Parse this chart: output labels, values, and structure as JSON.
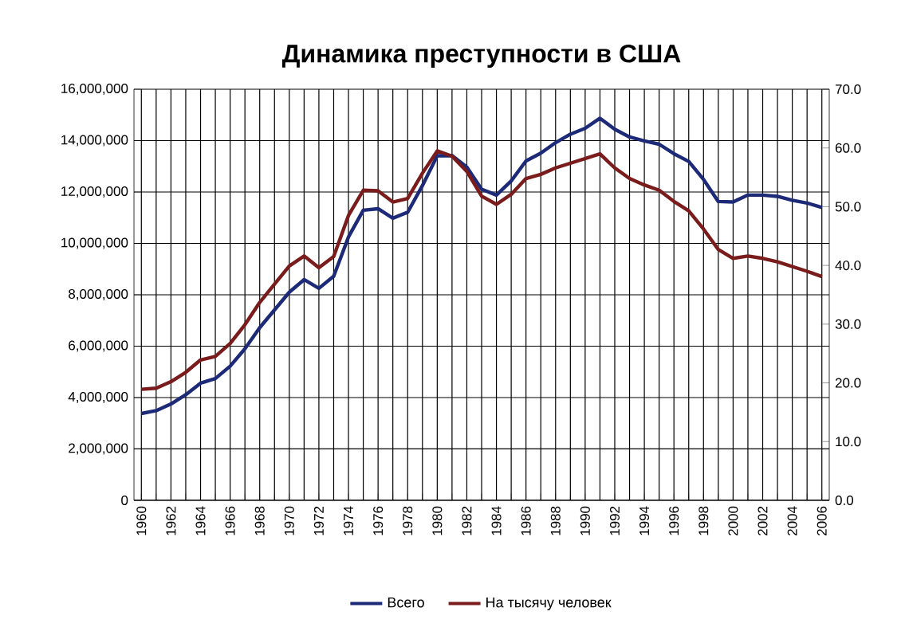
{
  "chart_data": {
    "type": "line",
    "title": "Динамика преступности в США",
    "categories": [
      "1960",
      null,
      "1962",
      null,
      "1964",
      null,
      "1966",
      null,
      "1968",
      null,
      "1970",
      null,
      "1972",
      null,
      "1974",
      null,
      "1976",
      null,
      "1978",
      null,
      "1980",
      null,
      "1982",
      null,
      "1984",
      null,
      "1986",
      null,
      "1988",
      null,
      "1990",
      null,
      "1992",
      null,
      "1994",
      null,
      "1996",
      null,
      "1998",
      null,
      "2000",
      null,
      "2002",
      null,
      "2004",
      null,
      "2006"
    ],
    "series": [
      {
        "name": "Всего",
        "color": "#1c2a78",
        "values": [
          3380000,
          3490000,
          3750000,
          4110000,
          4560000,
          4740000,
          5220000,
          5900000,
          6720000,
          7410000,
          8100000,
          8590000,
          8250000,
          8720000,
          10250000,
          11290000,
          11350000,
          10980000,
          11210000,
          12250000,
          13410000,
          13420000,
          12970000,
          12110000,
          11880000,
          12430000,
          13210000,
          13510000,
          13920000,
          14250000,
          14480000,
          14870000,
          14440000,
          14140000,
          13990000,
          13860000,
          13490000,
          13190000,
          12490000,
          11630000,
          11610000,
          11880000,
          11880000,
          11830000,
          11680000,
          11570000,
          11400000
        ]
      },
      {
        "name": "На тысячу человек",
        "color": "#7a1c1c",
        "axis": "y2",
        "values": [
          18.9,
          19.1,
          20.2,
          21.8,
          23.9,
          24.5,
          26.7,
          29.9,
          33.7,
          36.8,
          39.9,
          41.6,
          39.6,
          41.5,
          48.5,
          52.8,
          52.7,
          50.8,
          51.4,
          55.7,
          59.5,
          58.6,
          56.0,
          51.8,
          50.4,
          52.1,
          54.8,
          55.5,
          56.6,
          57.4,
          58.2,
          59.0,
          56.6,
          54.8,
          53.7,
          52.8,
          50.9,
          49.3,
          46.2,
          42.7,
          41.2,
          41.6,
          41.2,
          40.6,
          39.8,
          39.0,
          38.1
        ]
      }
    ],
    "ylim": [
      0,
      16000000
    ],
    "yticks": [
      {
        "value": 0,
        "label": "0"
      },
      {
        "value": 2000000,
        "label": "2,000,000"
      },
      {
        "value": 4000000,
        "label": "4,000,000"
      },
      {
        "value": 6000000,
        "label": "6,000,000"
      },
      {
        "value": 8000000,
        "label": "8,000,000"
      },
      {
        "value": 10000000,
        "label": "10,000,000"
      },
      {
        "value": 12000000,
        "label": "12,000,000"
      },
      {
        "value": 14000000,
        "label": "14,000,000"
      },
      {
        "value": 16000000,
        "label": "16,000,000"
      }
    ],
    "y2lim": [
      0,
      70
    ],
    "y2ticks": [
      {
        "value": 0,
        "label": "0.0"
      },
      {
        "value": 10,
        "label": "10.0"
      },
      {
        "value": 20,
        "label": "20.0"
      },
      {
        "value": 30,
        "label": "30.0"
      },
      {
        "value": 40,
        "label": "40.0"
      },
      {
        "value": 50,
        "label": "50.0"
      },
      {
        "value": 60,
        "label": "60.0"
      },
      {
        "value": 70,
        "label": "70.0"
      }
    ],
    "grid": true,
    "legend": "bottom"
  }
}
